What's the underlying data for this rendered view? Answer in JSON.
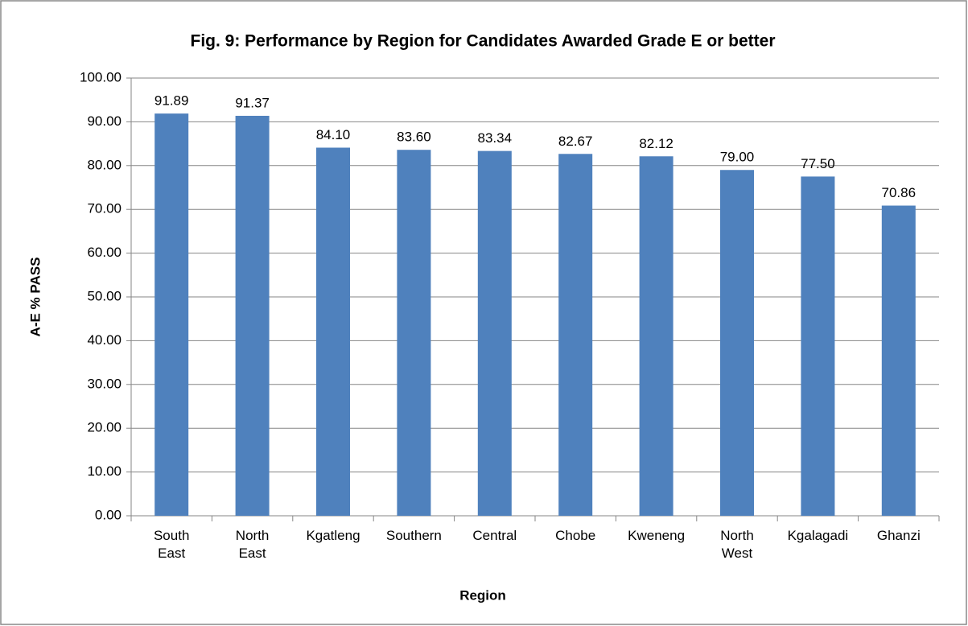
{
  "chart_data": {
    "type": "bar",
    "title": "Fig. 9: Performance by Region for Candidates Awarded Grade E or better",
    "x_label": "Region",
    "y_label": "A-E % PASS",
    "categories": [
      "South\nEast",
      "North\nEast",
      "Kgatleng",
      "Southern",
      "Central",
      "Chobe",
      "Kweneng",
      "North\nWest",
      "Kgalagadi",
      "Ghanzi"
    ],
    "values": [
      91.89,
      91.37,
      84.1,
      83.6,
      83.34,
      82.67,
      82.12,
      79.0,
      77.5,
      70.86
    ],
    "value_labels": [
      "91.89",
      "91.37",
      "84.10",
      "83.60",
      "83.34",
      "82.67",
      "82.12",
      "79.00",
      "77.50",
      "70.86"
    ],
    "color": "#4f81bd",
    "ylim": [
      0,
      100
    ],
    "yticks": [
      {
        "value": 0,
        "label": "0.00"
      },
      {
        "value": 10,
        "label": "10.00"
      },
      {
        "value": 20,
        "label": "20.00"
      },
      {
        "value": 30,
        "label": "30.00"
      },
      {
        "value": 40,
        "label": "40.00"
      },
      {
        "value": 50,
        "label": "50.00"
      },
      {
        "value": 60,
        "label": "60.00"
      },
      {
        "value": 70,
        "label": "70.00"
      },
      {
        "value": 80,
        "label": "80.00"
      },
      {
        "value": 90,
        "label": "90.00"
      },
      {
        "value": 100,
        "label": "100.00"
      }
    ],
    "grid": true
  }
}
